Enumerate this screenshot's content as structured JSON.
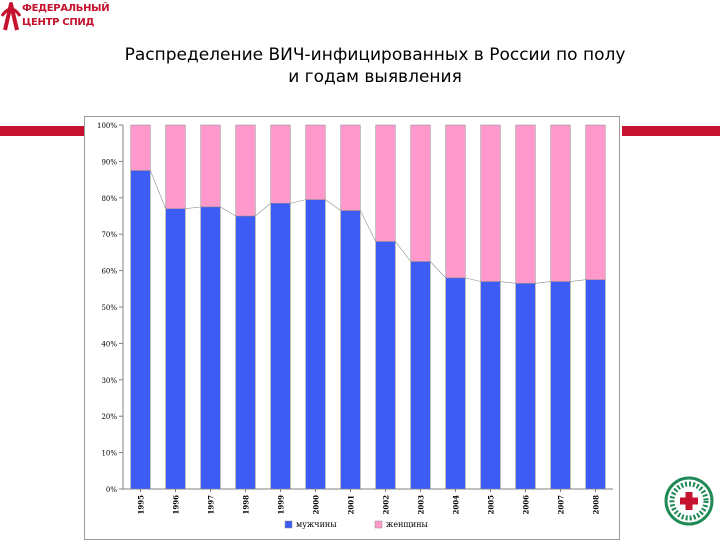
{
  "header": {
    "logo_line1": "ФЕДЕРАЛЬНЫЙ",
    "logo_line2": "ЦЕНТР СПИД",
    "title_line1": "Распределение ВИЧ-инфицированных в России  по полу",
    "title_line2": "и годам выявления"
  },
  "colors": {
    "brand_red": "#c4122f",
    "men": "#3d5cf5",
    "women": "#ff99cc",
    "badge_green": "#1f8a56"
  },
  "chart_data": {
    "type": "bar",
    "stacked": true,
    "percent": true,
    "categories": [
      "1995",
      "1996",
      "1997",
      "1998",
      "1999",
      "2000",
      "2001",
      "2002",
      "2003",
      "2004",
      "2005",
      "2006",
      "2007",
      "2008"
    ],
    "series": [
      {
        "name": "мужчины",
        "color": "#3d5cf5",
        "values": [
          87.5,
          77,
          77.5,
          75,
          78.5,
          79.5,
          76.5,
          68,
          62.5,
          58,
          57,
          56.5,
          57,
          57.5
        ]
      },
      {
        "name": "женщины",
        "color": "#ff99cc",
        "values": [
          12.5,
          23,
          22.5,
          25,
          21.5,
          20.5,
          23.5,
          32,
          37.5,
          42,
          43,
          43.5,
          43,
          42.5
        ]
      }
    ],
    "ylim": [
      0,
      100
    ],
    "yticks": [
      "0%",
      "10%",
      "20%",
      "30%",
      "40%",
      "50%",
      "60%",
      "70%",
      "80%",
      "90%",
      "100%"
    ],
    "grid": false,
    "series_lines": true,
    "legend": "bottom",
    "title": "",
    "xlabel": "",
    "ylabel": ""
  }
}
